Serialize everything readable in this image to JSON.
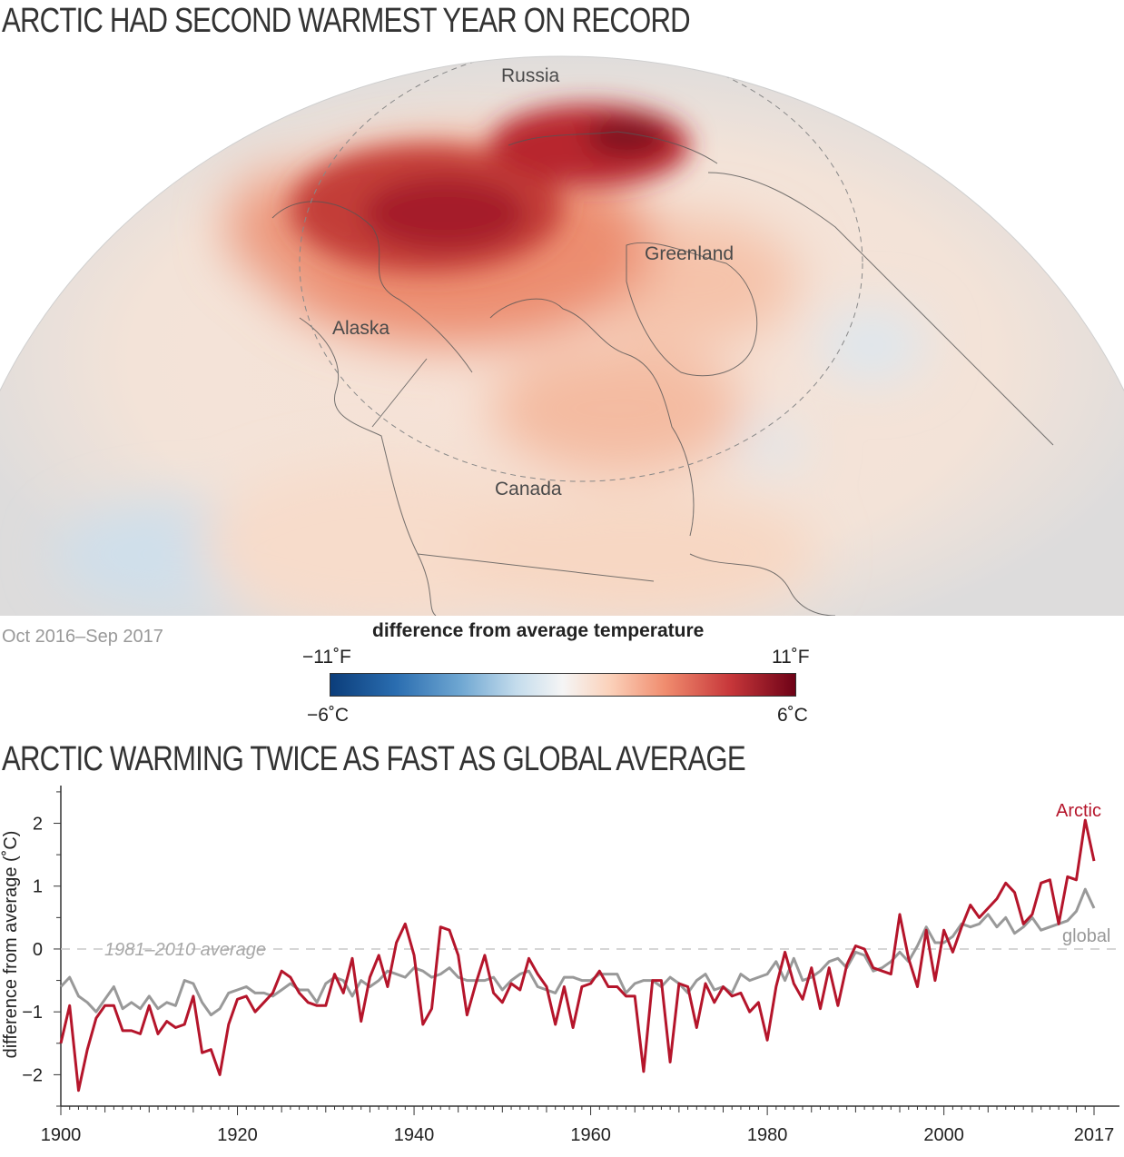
{
  "map": {
    "title": "ARCTIC HAD SECOND WARMEST YEAR ON RECORD",
    "date_label": "Oct 2016–Sep 2017",
    "region_labels": [
      "Russia",
      "Greenland",
      "Alaska",
      "Canada"
    ],
    "legend": {
      "title": "difference from average temperature",
      "min_f": "−11˚F",
      "max_f": "11˚F",
      "min_c": "−6˚C",
      "max_c": "6˚C",
      "colors": [
        "#0b3d7a",
        "#6fa7d2",
        "#f5f5f5",
        "#f08c6e",
        "#6e0217"
      ]
    }
  },
  "chart_data": {
    "type": "line",
    "title": "ARCTIC WARMING TWICE AS FAST AS GLOBAL AVERAGE",
    "xlabel": "",
    "ylabel": "difference from average (˚C)",
    "xlim": [
      1900,
      2017
    ],
    "ylim": [
      -2.5,
      2.6
    ],
    "xticks": [
      "1900",
      "1920",
      "1940",
      "1960",
      "1980",
      "2000",
      "2017"
    ],
    "yticks": [
      "2",
      "1",
      "0",
      "−1",
      "−2"
    ],
    "reference_line": {
      "y": 0,
      "label": "1981–2010 average"
    },
    "grid": false,
    "series": [
      {
        "name": "Arctic",
        "color": "#b5152b",
        "x": [
          1900,
          1901,
          1902,
          1903,
          1904,
          1905,
          1906,
          1907,
          1908,
          1909,
          1910,
          1911,
          1912,
          1913,
          1914,
          1915,
          1916,
          1917,
          1918,
          1919,
          1920,
          1921,
          1922,
          1923,
          1924,
          1925,
          1926,
          1927,
          1928,
          1929,
          1930,
          1931,
          1932,
          1933,
          1934,
          1935,
          1936,
          1937,
          1938,
          1939,
          1940,
          1941,
          1942,
          1943,
          1944,
          1945,
          1946,
          1947,
          1948,
          1949,
          1950,
          1951,
          1952,
          1953,
          1954,
          1955,
          1956,
          1957,
          1958,
          1959,
          1960,
          1961,
          1962,
          1963,
          1964,
          1965,
          1966,
          1967,
          1968,
          1969,
          1970,
          1971,
          1972,
          1973,
          1974,
          1975,
          1976,
          1977,
          1978,
          1979,
          1980,
          1981,
          1982,
          1983,
          1984,
          1985,
          1986,
          1987,
          1988,
          1989,
          1990,
          1991,
          1992,
          1993,
          1994,
          1995,
          1996,
          1997,
          1998,
          1999,
          2000,
          2001,
          2002,
          2003,
          2004,
          2005,
          2006,
          2007,
          2008,
          2009,
          2010,
          2011,
          2012,
          2013,
          2014,
          2015,
          2016,
          2017
        ],
        "y": [
          -1.5,
          -0.9,
          -2.25,
          -1.6,
          -1.1,
          -0.9,
          -0.9,
          -1.3,
          -1.3,
          -1.35,
          -0.9,
          -1.35,
          -1.15,
          -1.25,
          -1.2,
          -0.75,
          -1.65,
          -1.6,
          -2.0,
          -1.2,
          -0.8,
          -0.75,
          -1.0,
          -0.85,
          -0.7,
          -0.35,
          -0.45,
          -0.7,
          -0.85,
          -0.9,
          -0.9,
          -0.4,
          -0.7,
          -0.15,
          -1.15,
          -0.45,
          -0.1,
          -0.6,
          0.1,
          0.4,
          -0.1,
          -1.2,
          -0.95,
          0.35,
          0.3,
          -0.1,
          -1.05,
          -0.55,
          -0.1,
          -0.7,
          -0.85,
          -0.55,
          -0.65,
          -0.15,
          -0.4,
          -0.6,
          -1.2,
          -0.6,
          -1.25,
          -0.6,
          -0.55,
          -0.35,
          -0.6,
          -0.6,
          -0.75,
          -0.75,
          -1.95,
          -0.5,
          -0.5,
          -1.8,
          -0.55,
          -0.6,
          -1.25,
          -0.55,
          -0.85,
          -0.6,
          -0.75,
          -0.7,
          -1.0,
          -0.85,
          -1.45,
          -0.6,
          -0.05,
          -0.55,
          -0.8,
          -0.3,
          -0.95,
          -0.3,
          -0.9,
          -0.25,
          0.05,
          0.0,
          -0.3,
          -0.35,
          -0.4,
          0.55,
          -0.15,
          -0.6,
          0.3,
          -0.5,
          0.3,
          -0.05,
          0.35,
          0.7,
          0.5,
          0.65,
          0.8,
          1.05,
          0.9,
          0.4,
          0.55,
          1.05,
          1.1,
          0.4,
          1.15,
          1.1,
          2.05,
          1.4
        ]
      },
      {
        "name": "global",
        "color": "#999999",
        "x": [
          1900,
          1901,
          1902,
          1903,
          1904,
          1905,
          1906,
          1907,
          1908,
          1909,
          1910,
          1911,
          1912,
          1913,
          1914,
          1915,
          1916,
          1917,
          1918,
          1919,
          1920,
          1921,
          1922,
          1923,
          1924,
          1925,
          1926,
          1927,
          1928,
          1929,
          1930,
          1931,
          1932,
          1933,
          1934,
          1935,
          1936,
          1937,
          1938,
          1939,
          1940,
          1941,
          1942,
          1943,
          1944,
          1945,
          1946,
          1947,
          1948,
          1949,
          1950,
          1951,
          1952,
          1953,
          1954,
          1955,
          1956,
          1957,
          1958,
          1959,
          1960,
          1961,
          1962,
          1963,
          1964,
          1965,
          1966,
          1967,
          1968,
          1969,
          1970,
          1971,
          1972,
          1973,
          1974,
          1975,
          1976,
          1977,
          1978,
          1979,
          1980,
          1981,
          1982,
          1983,
          1984,
          1985,
          1986,
          1987,
          1988,
          1989,
          1990,
          1991,
          1992,
          1993,
          1994,
          1995,
          1996,
          1997,
          1998,
          1999,
          2000,
          2001,
          2002,
          2003,
          2004,
          2005,
          2006,
          2007,
          2008,
          2009,
          2010,
          2011,
          2012,
          2013,
          2014,
          2015,
          2016,
          2017
        ],
        "y": [
          -0.6,
          -0.45,
          -0.75,
          -0.85,
          -1.0,
          -0.8,
          -0.6,
          -0.95,
          -0.85,
          -0.95,
          -0.75,
          -0.95,
          -0.85,
          -0.9,
          -0.5,
          -0.55,
          -0.85,
          -1.05,
          -0.95,
          -0.7,
          -0.65,
          -0.6,
          -0.7,
          -0.7,
          -0.75,
          -0.65,
          -0.55,
          -0.65,
          -0.65,
          -0.85,
          -0.55,
          -0.45,
          -0.5,
          -0.75,
          -0.5,
          -0.6,
          -0.5,
          -0.35,
          -0.4,
          -0.45,
          -0.3,
          -0.35,
          -0.45,
          -0.4,
          -0.3,
          -0.45,
          -0.5,
          -0.5,
          -0.5,
          -0.45,
          -0.65,
          -0.5,
          -0.4,
          -0.35,
          -0.6,
          -0.65,
          -0.7,
          -0.45,
          -0.45,
          -0.5,
          -0.5,
          -0.4,
          -0.4,
          -0.4,
          -0.7,
          -0.55,
          -0.5,
          -0.5,
          -0.6,
          -0.45,
          -0.55,
          -0.7,
          -0.5,
          -0.4,
          -0.65,
          -0.6,
          -0.7,
          -0.4,
          -0.5,
          -0.45,
          -0.4,
          -0.2,
          -0.5,
          -0.15,
          -0.5,
          -0.45,
          -0.35,
          -0.2,
          -0.15,
          -0.3,
          -0.05,
          -0.1,
          -0.35,
          -0.3,
          -0.2,
          -0.05,
          -0.2,
          0.05,
          0.35,
          0.1,
          0.1,
          0.2,
          0.4,
          0.35,
          0.4,
          0.55,
          0.35,
          0.5,
          0.25,
          0.35,
          0.5,
          0.3,
          0.35,
          0.4,
          0.45,
          0.6,
          0.95,
          0.65
        ]
      }
    ]
  }
}
